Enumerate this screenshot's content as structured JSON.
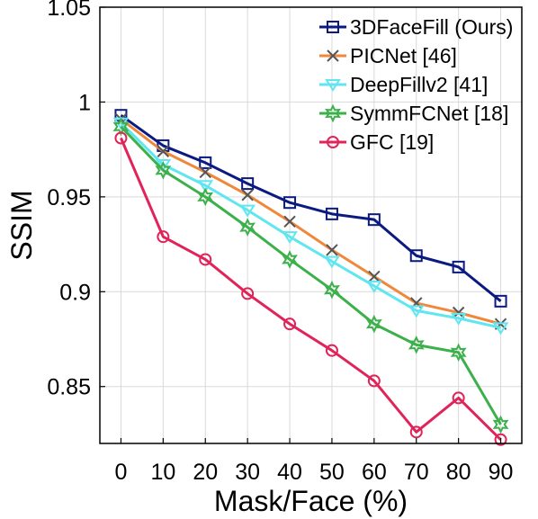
{
  "chart_data": {
    "type": "line",
    "xlabel": "Mask/Face (%)",
    "ylabel": "SSIM",
    "x": [
      0,
      10,
      20,
      30,
      40,
      50,
      60,
      70,
      80,
      90
    ],
    "xlim": [
      -5,
      95
    ],
    "ylim": [
      0.82,
      1.05
    ],
    "xticks": [
      0,
      10,
      20,
      30,
      40,
      50,
      60,
      70,
      80,
      90
    ],
    "yticks": [
      0.85,
      0.9,
      0.95,
      1
    ],
    "ytick_labels": [
      "0.85",
      "0.9",
      "0.95",
      "1",
      "1.05"
    ],
    "yticks_all": [
      0.85,
      0.9,
      0.95,
      1,
      1.05
    ],
    "grid": true,
    "legend_position": "top-right",
    "series": [
      {
        "name": "3DFaceFill (Ours)",
        "color": "#0a1a80",
        "marker": "square",
        "values": [
          0.993,
          0.977,
          0.968,
          0.957,
          0.947,
          0.941,
          0.938,
          0.919,
          0.913,
          0.895
        ]
      },
      {
        "name": "PICNet [46]",
        "color": "#f0883c",
        "marker": "x",
        "values": [
          0.991,
          0.974,
          0.963,
          0.951,
          0.937,
          0.922,
          0.908,
          0.894,
          0.889,
          0.883
        ]
      },
      {
        "name": "DeepFillv2 [41]",
        "color": "#5fe6f0",
        "marker": "triangle-down",
        "values": [
          0.989,
          0.967,
          0.956,
          0.943,
          0.929,
          0.916,
          0.903,
          0.89,
          0.886,
          0.881
        ]
      },
      {
        "name": "SymmFCNet [18]",
        "color": "#3cb04a",
        "marker": "star",
        "values": [
          0.987,
          0.964,
          0.95,
          0.934,
          0.917,
          0.901,
          0.883,
          0.872,
          0.868,
          0.83
        ]
      },
      {
        "name": "GFC [19]",
        "color": "#e0245a",
        "marker": "circle",
        "values": [
          0.981,
          0.929,
          0.917,
          0.899,
          0.883,
          0.869,
          0.853,
          0.826,
          0.844,
          0.822
        ]
      }
    ]
  }
}
